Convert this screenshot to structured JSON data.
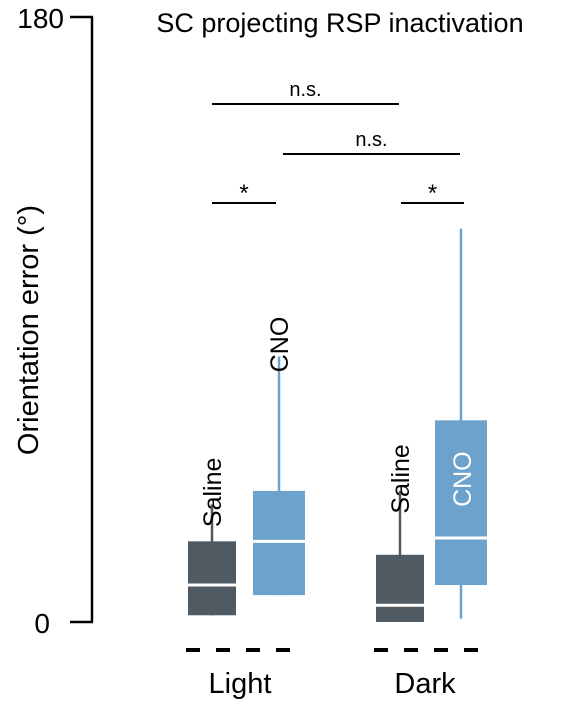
{
  "chart_data": {
    "type": "box",
    "title": "SC projecting RSP inactivation",
    "ylabel": "Orientation error (°)",
    "ylim": [
      0,
      180
    ],
    "yticks": [
      "0",
      "180"
    ],
    "groups": [
      "Light",
      "Dark"
    ],
    "conditions": [
      "Saline",
      "CNO"
    ],
    "colors": {
      "Saline": "#505a62",
      "CNO": "#6ca2cc",
      "median": "#ffffff"
    },
    "boxes": [
      {
        "group": "Light",
        "condition": "Saline",
        "label": "Saline",
        "whisker_low": 2,
        "q1": 2,
        "median": 11,
        "q3": 24,
        "whisker_high": 35
      },
      {
        "group": "Light",
        "condition": "CNO",
        "label": "CNO",
        "whisker_low": 8,
        "q1": 8,
        "median": 24,
        "q3": 39,
        "whisker_high": 79
      },
      {
        "group": "Dark",
        "condition": "Saline",
        "label": "Saline",
        "whisker_low": 0,
        "q1": 0,
        "median": 5,
        "q3": 20,
        "whisker_high": 39
      },
      {
        "group": "Dark",
        "condition": "CNO",
        "label": "CNO",
        "whisker_low": 1,
        "q1": 11,
        "median": 25,
        "q3": 60,
        "whisker_high": 117
      }
    ],
    "significance": [
      {
        "label": "n.s.",
        "from": "Light Saline",
        "to": "Dark Saline"
      },
      {
        "label": "n.s.",
        "from": "Light CNO",
        "to": "Dark CNO"
      },
      {
        "label": "*",
        "from": "Light Saline",
        "to": "Light CNO"
      },
      {
        "label": "*",
        "from": "Dark Saline",
        "to": "Dark CNO"
      }
    ]
  }
}
